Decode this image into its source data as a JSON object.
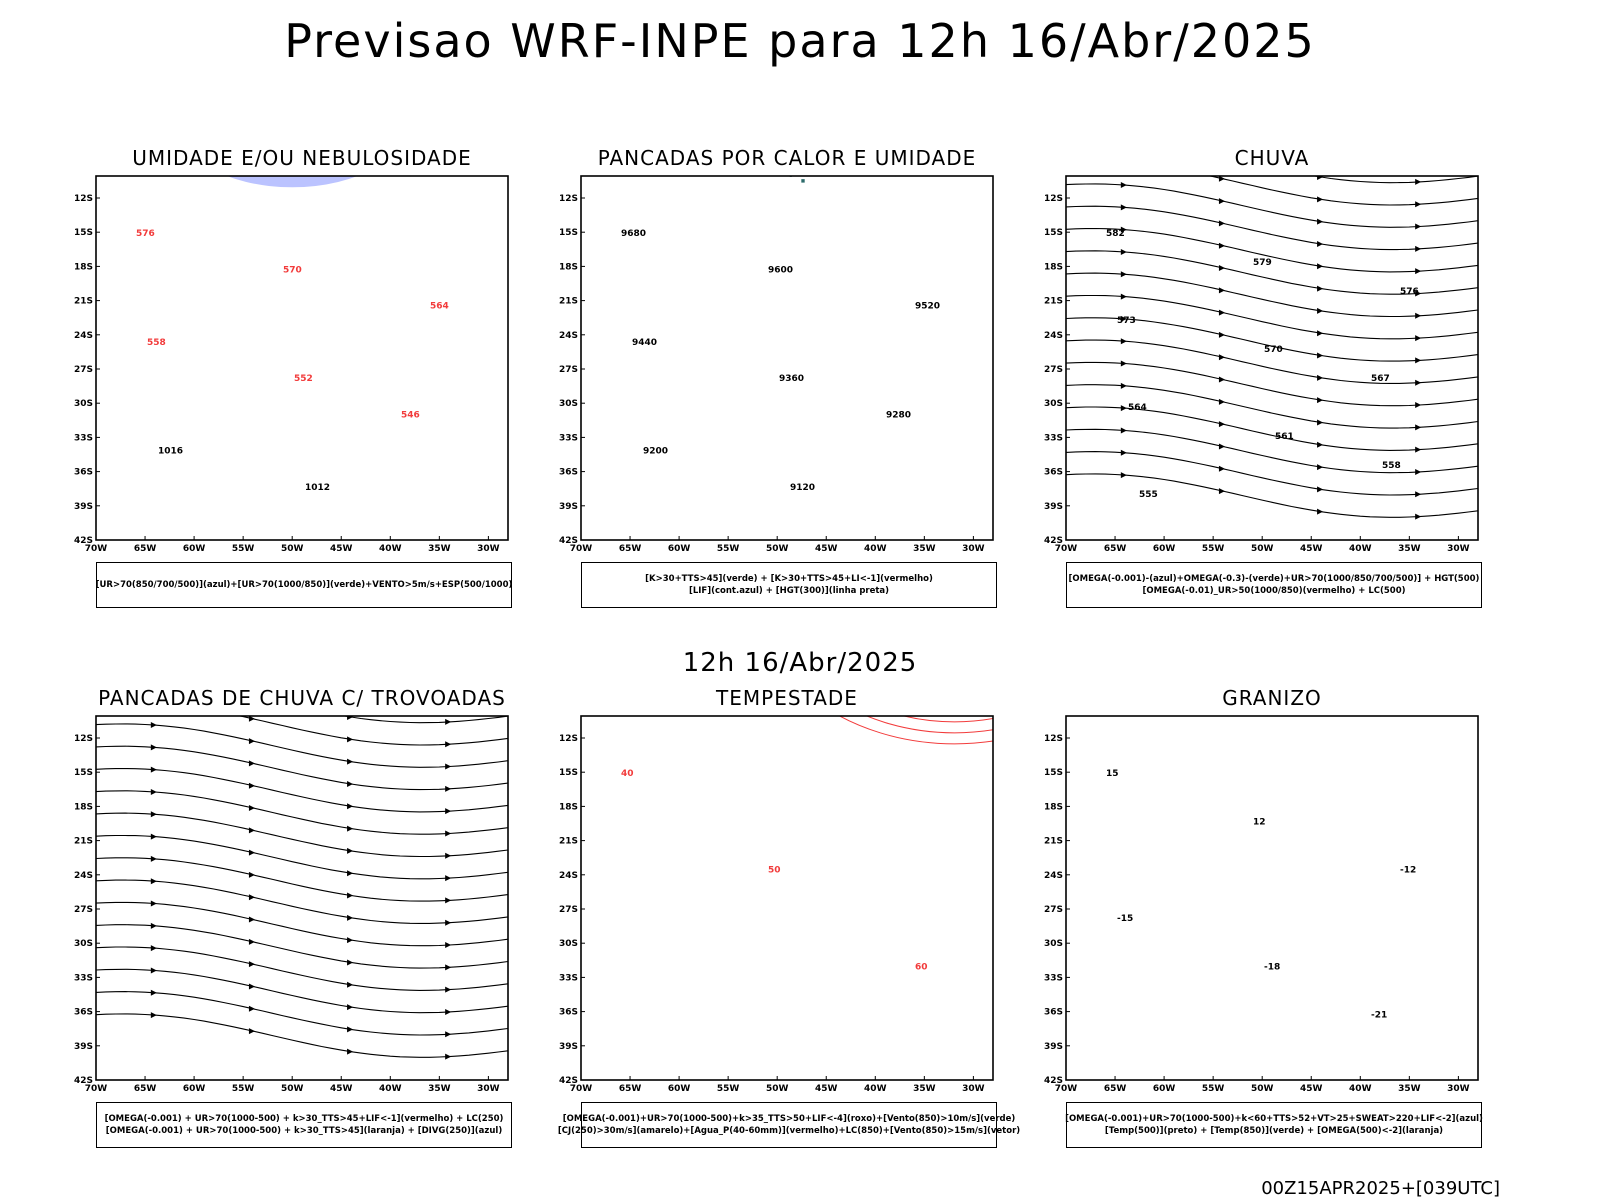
{
  "title": "Previsao WRF-INPE  para 12h 16/Abr/2025",
  "row_time": "12h 16/Abr/2025",
  "footer": "00Z15APR2025+[039UTC]",
  "colors": {
    "blue": "#3a4cff",
    "lightblue": "#aab4ff",
    "green": "#22cc22",
    "red": "#f23b3b",
    "yellow": "#e6d830",
    "orange": "#f08a30",
    "teal": "#2d6b6b"
  },
  "axes": {
    "lat_labels": [
      "12S",
      "15S",
      "18S",
      "21S",
      "24S",
      "27S",
      "30S",
      "33S",
      "36S",
      "39S",
      "42S"
    ],
    "lon_labels": [
      "70W",
      "65W",
      "60W",
      "55W",
      "50W",
      "45W",
      "40W",
      "35W",
      "30W"
    ]
  },
  "panels": [
    {
      "title": "UMIDADE E/OU NEBULOSIDADE",
      "legend": [
        "[UR>70(850/700/500)](azul)+[UR>70(1000/850)](verde)+VENTO>5m/s+ESP(500/1000)"
      ],
      "contour_labels": [
        "576",
        "570",
        "564",
        "558",
        "552",
        "546",
        "1016",
        "1012"
      ]
    },
    {
      "title": "PANCADAS POR CALOR E UMIDADE",
      "legend": [
        "[K>30+TTS>45](verde) + [K>30+TTS>45+LI<-1](vermelho)",
        "[LIF](cont.azul) + [HGT(300)](linha preta)"
      ],
      "contour_labels": [
        "9680",
        "9600",
        "9520",
        "9440",
        "9360",
        "9280",
        "9200",
        "9120"
      ]
    },
    {
      "title": "CHUVA",
      "legend": [
        "[OMEGA(-0.001)-(azul)+OMEGA(-0.3)-(verde)+UR>70(1000/850/700/500)] + HGT(500)",
        "[OMEGA(-0.01)_UR>50(1000/850)(vermelho) + LC(500)"
      ],
      "contour_labels": [
        "582",
        "579",
        "576",
        "573",
        "570",
        "567",
        "564",
        "561",
        "558",
        "555"
      ]
    },
    {
      "title": "PANCADAS DE CHUVA C/ TROVOADAS",
      "legend": [
        "[OMEGA(-0.001) + UR>70(1000-500) + k>30_TTS>45+LIF<-1](vermelho) + LC(250)",
        "[OMEGA(-0.001) + UR>70(1000-500) + k>30_TTS>45](laranja) + [DIVG(250)](azul)"
      ],
      "contour_labels": []
    },
    {
      "title": "TEMPESTADE",
      "legend": [
        "[OMEGA(-0.001)+UR>70(1000-500)+k>35_TTS>50+LIF<-4](roxo)+[Vento(850)>10m/s](verde)",
        "[CJ(250)>30m/s](amarelo)+[Agua_P(40-60mm)](vermelho)+LC(850)+[Vento(850)>15m/s](vetor)"
      ],
      "contour_labels": [
        "40",
        "50",
        "60"
      ]
    },
    {
      "title": "GRANIZO",
      "legend": [
        "[OMEGA(-0.001)+UR>70(1000-500)+k<60+TTS>52+VT>25+SWEAT>220+LIF<-2](azul)",
        "[Temp(500)](preto) + [Temp(850)](verde) + [OMEGA(500)<-2](laranja)"
      ],
      "contour_labels": [
        "15",
        "12",
        "-12",
        "-15",
        "-18",
        "-21"
      ]
    }
  ]
}
